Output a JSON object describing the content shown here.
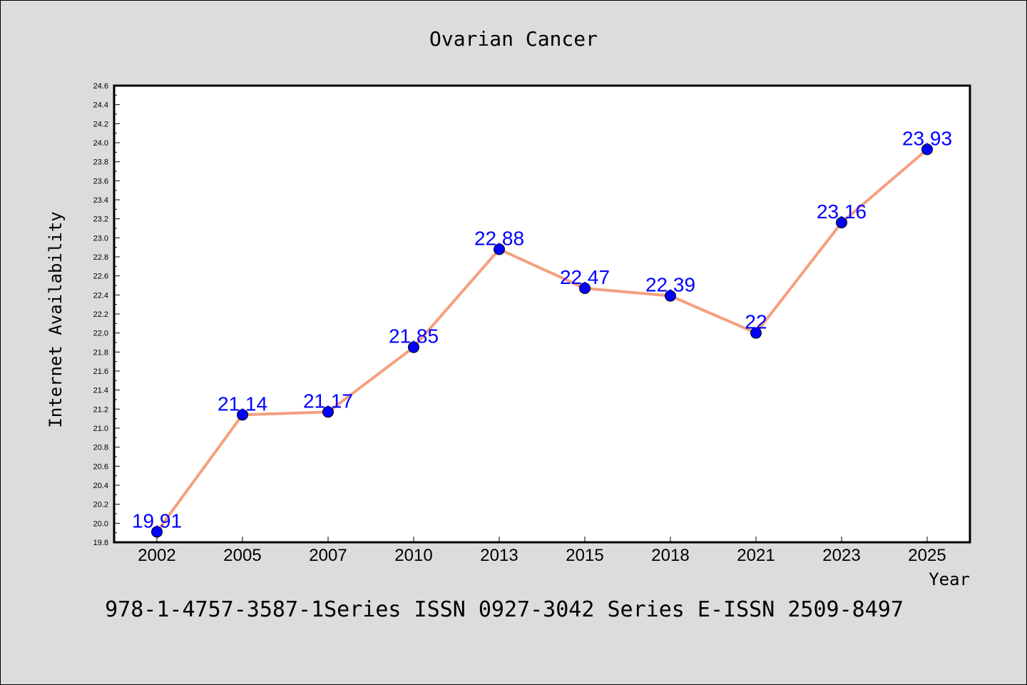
{
  "colors": {
    "background": "#dcdcdc",
    "plot_background": "#ffffff",
    "line": "#f4a07f",
    "marker": "#0000ff",
    "data_label": "#0000ff",
    "text": "#000000"
  },
  "footer": {
    "text": "978-1-4757-3587-1Series ISSN 0927-3042 Series E-ISSN 2509-8497"
  },
  "chart_data": {
    "type": "line",
    "title": "Ovarian Cancer",
    "xlabel": "Year",
    "ylabel": "Internet Availability",
    "categories": [
      "2002",
      "2005",
      "2007",
      "2010",
      "2013",
      "2015",
      "2018",
      "2021",
      "2023",
      "2025"
    ],
    "series": [
      {
        "values": [
          19.91,
          21.14,
          21.17,
          21.85,
          22.88,
          22.47,
          22.39,
          22.0,
          23.16,
          23.93
        ],
        "data_labels": [
          "19.91",
          "21.14",
          "21.17",
          "21.85",
          "22.88",
          "22.47",
          "22.39",
          "22",
          "23.16",
          "23.93"
        ]
      }
    ],
    "ylim": [
      19.8,
      24.6
    ],
    "yticks": [
      "19.8",
      "20.0",
      "20.2",
      "20.4",
      "20.6",
      "20.8",
      "21.0",
      "21.2",
      "21.4",
      "21.6",
      "21.8",
      "22.0",
      "22.2",
      "22.4",
      "22.6",
      "22.8",
      "23.0",
      "23.2",
      "23.4",
      "23.6",
      "23.8",
      "24.0",
      "24.2",
      "24.4",
      "24.6"
    ],
    "grid": false,
    "legend": "none"
  }
}
